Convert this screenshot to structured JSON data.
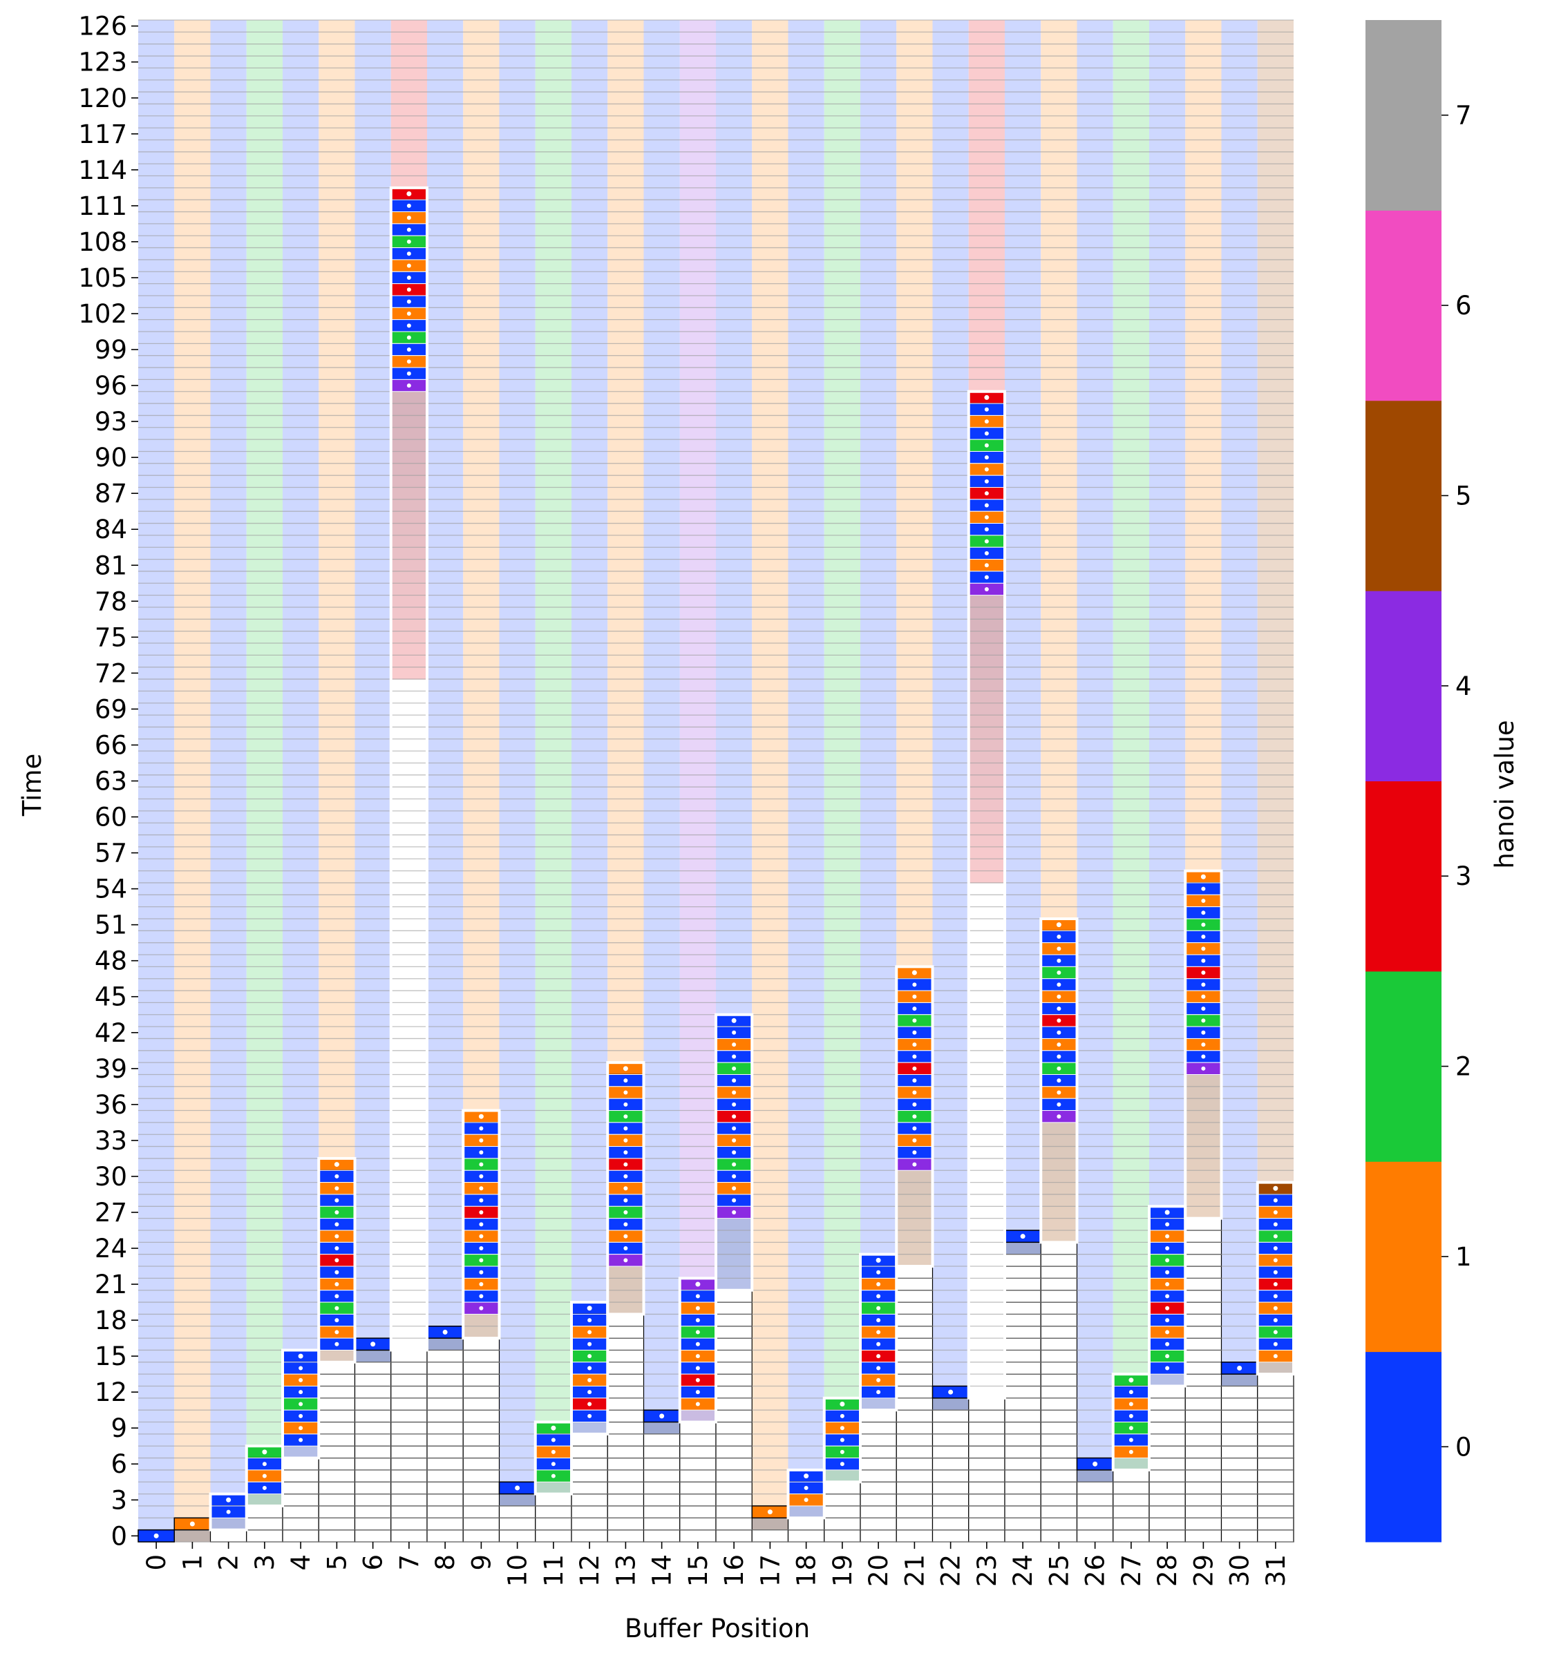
{
  "chart_data": {
    "type": "heatmap",
    "title": "",
    "xlabel": "Buffer Position",
    "ylabel": "Time",
    "x_categories": [
      0,
      1,
      2,
      3,
      4,
      5,
      6,
      7,
      8,
      9,
      10,
      11,
      12,
      13,
      14,
      15,
      16,
      17,
      18,
      19,
      20,
      21,
      22,
      23,
      24,
      25,
      26,
      27,
      28,
      29,
      30,
      31
    ],
    "y_range": [
      0,
      127
    ],
    "y_tick_labels": [
      0,
      3,
      6,
      9,
      12,
      15,
      18,
      21,
      24,
      27,
      30,
      33,
      36,
      39,
      42,
      45,
      48,
      51,
      54,
      57,
      60,
      63,
      66,
      69,
      72,
      75,
      78,
      81,
      84,
      87,
      90,
      93,
      96,
      99,
      102,
      105,
      108,
      111,
      114,
      117,
      120,
      123,
      126
    ],
    "colorbar": {
      "label": "hanoi value",
      "range": [
        -0.5,
        7.5
      ],
      "ticks": [
        0,
        1,
        2,
        3,
        4,
        5,
        6,
        7
      ],
      "colors": [
        "#0a3aff",
        "#ff7c00",
        "#1ac938",
        "#e8000b",
        "#8b2be2",
        "#9f4800",
        "#f14cc1",
        "#a3a3a3"
      ]
    },
    "hanoi_value_rule": "value at position p = number of trailing zeros of (p + 1)",
    "fill_times": [
      0,
      1,
      3,
      7,
      15,
      31,
      16,
      112,
      17,
      35,
      4,
      9,
      19,
      39,
      10,
      21,
      43,
      2,
      5,
      11,
      23,
      47,
      12,
      95,
      25,
      51,
      6,
      13,
      27,
      55,
      14,
      29
    ],
    "pass_end_times": [
      63,
      79,
      96,
      112
    ]
  }
}
